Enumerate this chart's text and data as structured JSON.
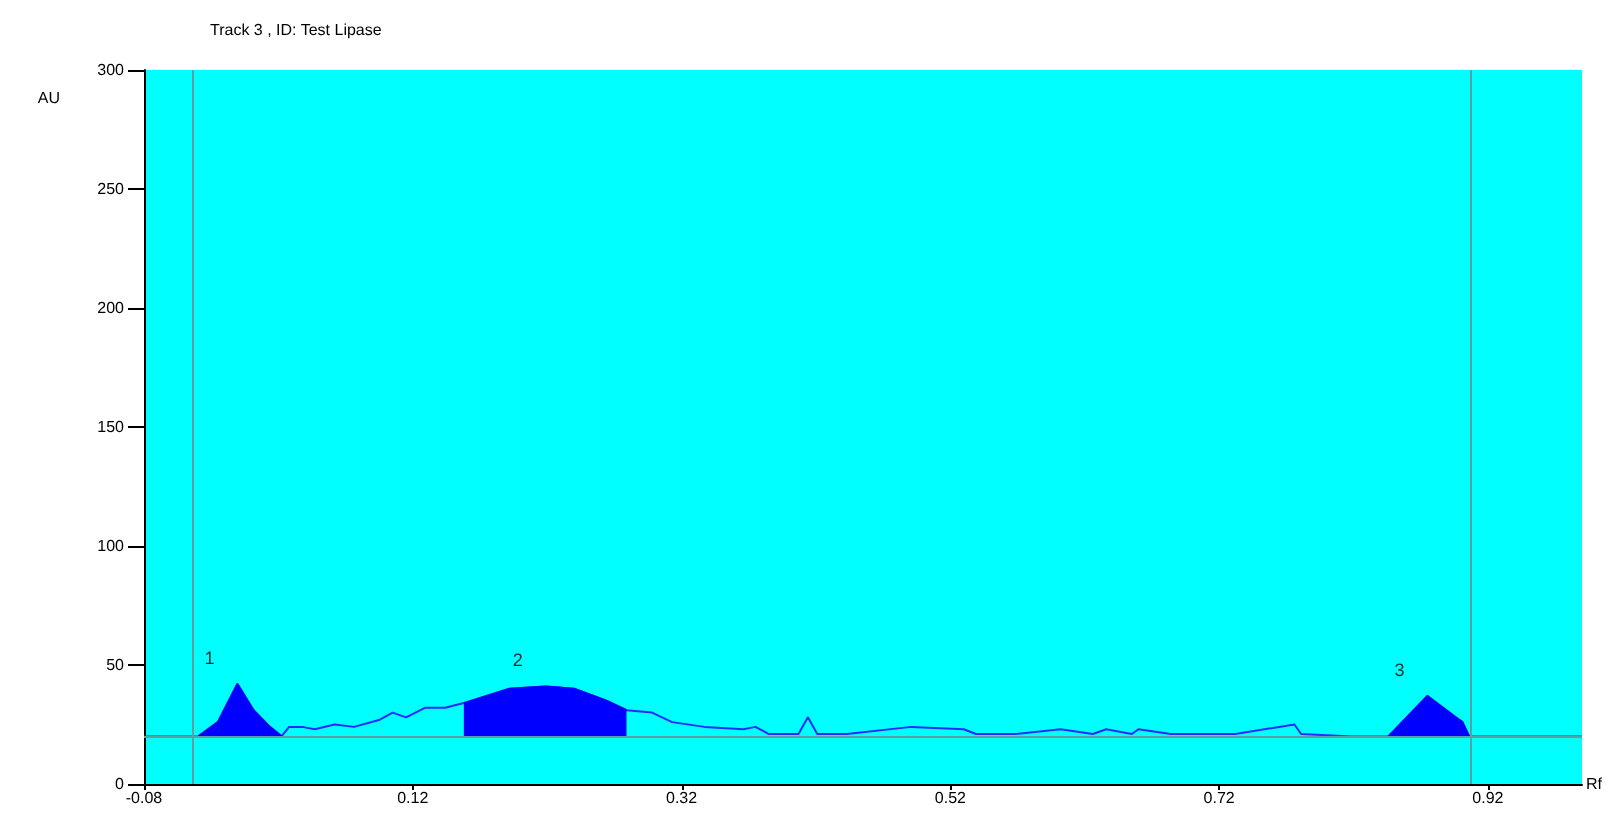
{
  "chart_data": {
    "type": "line",
    "title": "Track 3 , ID: Test Lipase",
    "xlabel": "Rf",
    "ylabel": "AU",
    "xlim": [
      -0.08,
      0.99
    ],
    "xticks": [
      -0.08,
      0.12,
      0.32,
      0.52,
      0.72,
      0.92
    ],
    "ylim": [
      0,
      300
    ],
    "yticks": [
      0,
      50,
      100,
      150,
      200,
      250,
      300
    ],
    "grid": false,
    "marker": "none",
    "line_style": "solid",
    "series": [
      {
        "color": "#2a2aff",
        "x": [
          -0.08,
          -0.0395,
          -0.025,
          -0.0105,
          0.0015,
          0.0136,
          0.0223,
          0.028,
          0.0377,
          0.047,
          0.0618,
          0.0763,
          0.0955,
          0.105,
          0.115,
          0.129,
          0.144,
          0.158,
          0.192,
          0.219,
          0.24,
          0.264,
          0.279,
          0.298,
          0.313,
          0.337,
          0.366,
          0.375,
          0.385,
          0.407,
          0.414,
          0.421,
          0.443,
          0.491,
          0.53,
          0.539,
          0.568,
          0.602,
          0.626,
          0.636,
          0.655,
          0.66,
          0.684,
          0.732,
          0.776,
          0.781,
          0.819,
          0.846,
          0.875,
          0.896,
          0.901,
          0.906,
          0.99
        ],
        "values": [
          20,
          20,
          26,
          42,
          31,
          24,
          20,
          24,
          24,
          23,
          25,
          24,
          27,
          30,
          28,
          32,
          32,
          34,
          40,
          41,
          40,
          35,
          31,
          30,
          26,
          24,
          23,
          24,
          21,
          21,
          28,
          21,
          21,
          24,
          23,
          21,
          21,
          23,
          21,
          23,
          21,
          23,
          21,
          21,
          25,
          21,
          20,
          20,
          37,
          28,
          26,
          20,
          20
        ]
      },
      {
        "type": "area",
        "color": "#0000ff",
        "x": [
          -0.0395,
          -0.025,
          -0.0105,
          0.0015,
          0.0136,
          0.0223
        ],
        "values": [
          20,
          26,
          42,
          31,
          24,
          20
        ]
      },
      {
        "type": "area",
        "color": "#0000ff",
        "x": [
          0.158,
          0.192,
          0.219,
          0.24,
          0.264,
          0.279
        ],
        "values": [
          34,
          40,
          41,
          40,
          35,
          31
        ]
      },
      {
        "type": "area",
        "color": "#0000ff",
        "x": [
          0.846,
          0.875,
          0.896,
          0.901,
          0.906
        ],
        "values": [
          20,
          37,
          28,
          26,
          20
        ]
      }
    ],
    "ref_lines": [
      {
        "axis": "x",
        "value": -0.044,
        "color": "#5f9ea0"
      },
      {
        "axis": "x",
        "value": 0.907,
        "color": "#5f9ea0"
      },
      {
        "axis": "y",
        "value": 20,
        "color": "#5f9ea0"
      }
    ],
    "annotations": [
      {
        "text": "1",
        "x": -0.0105,
        "y": 42
      },
      {
        "text": "2",
        "x": 0.219,
        "y": 41
      },
      {
        "text": "3",
        "x": 0.875,
        "y": 37
      }
    ]
  }
}
